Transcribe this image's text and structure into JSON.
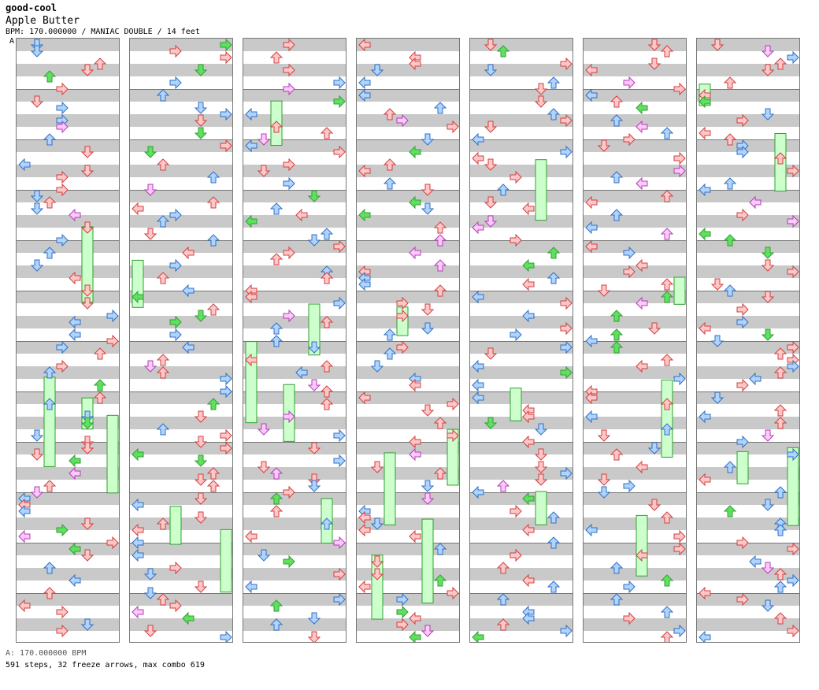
{
  "header": {
    "author": "good-cool",
    "title": "Apple Butter",
    "info": "BPM: 170.000000 / MANIAC DOUBLE / 14 feet",
    "marker": "A"
  },
  "footer": {
    "bpm": "A: 170.000000 BPM",
    "stats": "591 steps, 32 freeze arrows, max combo 619"
  },
  "chart": {
    "columns": 7,
    "measures_per_column": 12,
    "lanes": [
      "left",
      "down",
      "up",
      "right",
      "left",
      "down",
      "up",
      "right"
    ],
    "colors": {
      "quarter_fill": "#ffc8c8",
      "quarter_stroke": "#d04040",
      "eighth_fill": "#b0d4ff",
      "eighth_stroke": "#3070c0",
      "sixteenth_fill": "#ffc8ff",
      "sixteenth_stroke": "#b040b0",
      "freeze_fill": "#ccffcc",
      "freeze_stroke": "#30a030",
      "freeze_arrow_fill": "#60e060",
      "band": "#c9c9c9"
    }
  }
}
